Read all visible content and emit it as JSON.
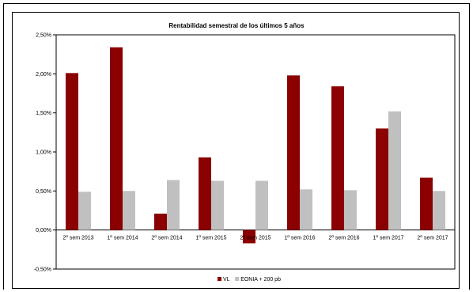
{
  "chart_data": {
    "type": "bar",
    "title": "Rentabilidad semestral de los últimos 5 años",
    "categories": [
      "2º sem 2013",
      "1º sem 2014",
      "2º sem 2014",
      "1º sem 2015",
      "2º sem 2015",
      "1º sem 2016",
      "2º sem 2016",
      "1º sem 2017",
      "2º sem 2017"
    ],
    "series": [
      {
        "name": "VL",
        "color": "#8b0000",
        "values": [
          0.0201,
          0.0234,
          0.0021,
          0.0093,
          -0.0017,
          0.0198,
          0.0184,
          0.013,
          0.0067
        ]
      },
      {
        "name": "EONIA + 200 pb",
        "color": "#c0c0c0",
        "values": [
          0.0049,
          0.005,
          0.0064,
          0.0063,
          0.0063,
          0.0052,
          0.0051,
          0.0152,
          0.005
        ]
      }
    ],
    "ylim": [
      -0.005,
      0.025
    ],
    "yticks": [
      {
        "value": 0.025,
        "label": "2,50%"
      },
      {
        "value": 0.02,
        "label": "2,00%"
      },
      {
        "value": 0.015,
        "label": "1,50%"
      },
      {
        "value": 0.01,
        "label": "1,00%"
      },
      {
        "value": 0.005,
        "label": "0,50%"
      },
      {
        "value": 0,
        "label": "0,00%"
      },
      {
        "value": -0.005,
        "label": "-0,50%"
      }
    ],
    "grid": false,
    "legend_position": "bottom"
  }
}
